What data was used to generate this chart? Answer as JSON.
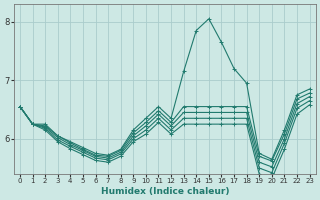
{
  "xlabel": "Humidex (Indice chaleur)",
  "xlim": [
    -0.5,
    23.5
  ],
  "ylim": [
    5.4,
    8.3
  ],
  "yticks": [
    6,
    7,
    8
  ],
  "xticks": [
    0,
    1,
    2,
    3,
    4,
    5,
    6,
    7,
    8,
    9,
    10,
    11,
    12,
    13,
    14,
    15,
    16,
    17,
    18,
    19,
    20,
    21,
    22,
    23
  ],
  "bg_color": "#cde8e4",
  "grid_color": "#aacccc",
  "line_color": "#217a6e",
  "lines": [
    [
      6.55,
      6.25,
      6.25,
      6.05,
      5.95,
      5.85,
      5.75,
      5.72,
      5.82,
      6.15,
      6.35,
      6.55,
      6.35,
      7.15,
      7.85,
      8.05,
      7.65,
      7.2,
      6.95,
      5.75,
      5.65,
      6.15,
      6.75,
      6.85
    ],
    [
      6.55,
      6.25,
      6.22,
      6.05,
      5.93,
      5.82,
      5.72,
      5.7,
      5.8,
      6.1,
      6.28,
      6.48,
      6.28,
      6.55,
      6.55,
      6.55,
      6.55,
      6.55,
      6.55,
      5.7,
      5.62,
      6.08,
      6.68,
      6.78
    ],
    [
      6.55,
      6.25,
      6.2,
      6.02,
      5.9,
      5.8,
      5.7,
      5.67,
      5.77,
      6.05,
      6.22,
      6.42,
      6.22,
      6.45,
      6.45,
      6.45,
      6.45,
      6.45,
      6.45,
      5.6,
      5.52,
      6.0,
      6.6,
      6.72
    ],
    [
      6.55,
      6.25,
      6.18,
      5.98,
      5.87,
      5.77,
      5.67,
      5.64,
      5.74,
      6.0,
      6.15,
      6.35,
      6.15,
      6.35,
      6.35,
      6.35,
      6.35,
      6.35,
      6.35,
      5.5,
      5.42,
      5.92,
      6.52,
      6.65
    ],
    [
      6.55,
      6.25,
      6.15,
      5.95,
      5.83,
      5.73,
      5.63,
      5.6,
      5.7,
      5.95,
      6.08,
      6.28,
      6.08,
      6.25,
      6.25,
      6.25,
      6.25,
      6.25,
      6.25,
      5.4,
      5.32,
      5.82,
      6.42,
      6.58
    ]
  ]
}
